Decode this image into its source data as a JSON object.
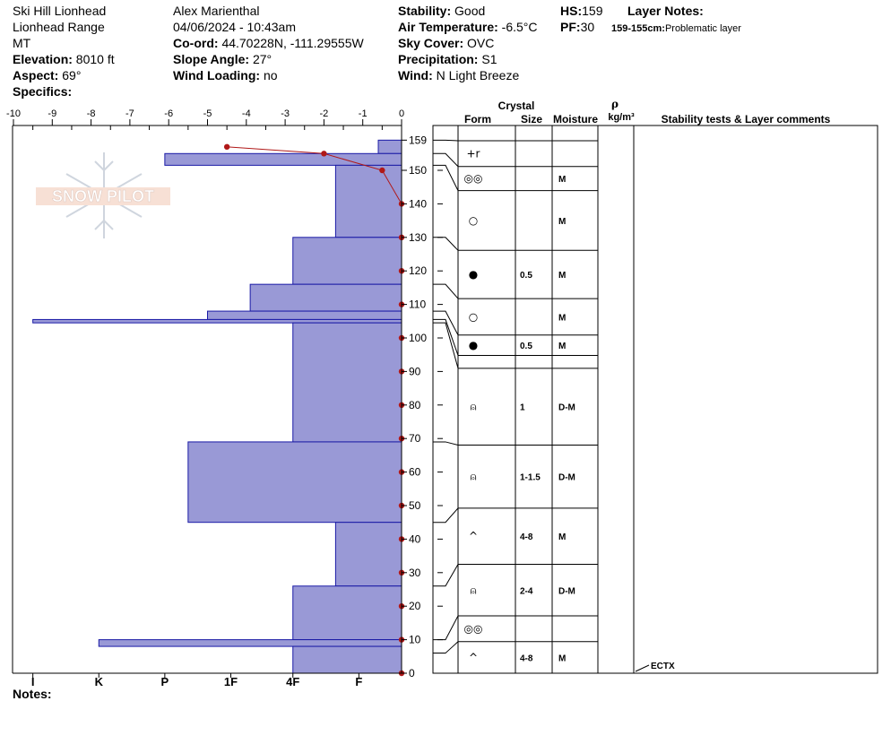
{
  "header": {
    "location": "Ski Hill Lionhead",
    "range": "Lionhead Range",
    "state": "MT",
    "elevation_label": "Elevation:",
    "elevation": "8010 ft",
    "aspect_label": "Aspect:",
    "aspect": "69°",
    "specifics_label": "Specifics:",
    "observer": "Alex Marienthal",
    "datetime": "04/06/2024 - 10:43am",
    "coord_label": "Co-ord:",
    "coord": "44.70228N, -111.29555W",
    "slope_label": "Slope Angle:",
    "slope": "27°",
    "wind_loading_label": "Wind Loading:",
    "wind_loading": "no",
    "stability_label": "Stability:",
    "stability": "Good",
    "air_temp_label": "Air Temperature:",
    "air_temp": "-6.5°C",
    "sky_label": "Sky Cover:",
    "sky": "OVC",
    "precip_label": "Precipitation:",
    "precip": "S1",
    "wind_label": "Wind:",
    "wind": "N Light Breeze",
    "hs_label": "HS:",
    "hs": "159",
    "pf_label": "PF:",
    "pf": "30",
    "layer_notes_label": "Layer Notes:",
    "layer_note_depth": "159-155cm:",
    "layer_note_text": "Problematic layer"
  },
  "notes_label": "Notes:",
  "watermark": "SNOW PILOT",
  "table_headers": {
    "crystal": "Crystal",
    "form": "Form",
    "size": "Size",
    "moisture": "Moisture",
    "rho": "ρ",
    "density_unit": "kg/m³",
    "stability": "Stability tests & Layer comments"
  },
  "colors": {
    "hardness_fill": "#9999d6",
    "hardness_edge": "#1a1aa6",
    "temp": "#b01818"
  },
  "chart_data": {
    "type": "snow-profile",
    "temp_axis": {
      "ticks": [
        -10,
        -9,
        -8,
        -7,
        -6,
        -5,
        -4,
        -3,
        -2,
        -1,
        0
      ],
      "range": [
        -10,
        0
      ]
    },
    "height_axis": {
      "ticks": [
        0,
        10,
        20,
        30,
        40,
        50,
        60,
        70,
        80,
        90,
        100,
        110,
        120,
        130,
        140,
        150,
        159
      ],
      "range": [
        0,
        159
      ]
    },
    "hardness_axis": {
      "labels": [
        "I",
        "K",
        "P",
        "1F",
        "4F",
        "F"
      ],
      "positions": [
        -9.5,
        -7.8,
        -6.1,
        -4.4,
        -2.8,
        -1.1
      ]
    },
    "hardness_layers": [
      {
        "top": 159,
        "bottom": 155,
        "value": -0.6
      },
      {
        "top": 155,
        "bottom": 151.5,
        "value": -6.1
      },
      {
        "top": 151.5,
        "bottom": 130,
        "value": -1.7
      },
      {
        "top": 130,
        "bottom": 116,
        "value": -2.8
      },
      {
        "top": 116,
        "bottom": 108,
        "value": -3.9
      },
      {
        "top": 108,
        "bottom": 105.5,
        "value": -5.0
      },
      {
        "top": 105.5,
        "bottom": 104.5,
        "value": -9.5
      },
      {
        "top": 104.5,
        "bottom": 69,
        "value": -2.8
      },
      {
        "top": 69,
        "bottom": 45,
        "value": -5.5
      },
      {
        "top": 45,
        "bottom": 26,
        "value": -1.7
      },
      {
        "top": 26,
        "bottom": 10,
        "value": -2.8
      },
      {
        "top": 10,
        "bottom": 8,
        "value": -7.8
      },
      {
        "top": 8,
        "bottom": 0,
        "value": -2.8
      }
    ],
    "temperature_profile": [
      {
        "temp": -4.5,
        "height": 157
      },
      {
        "temp": -2.0,
        "height": 155
      },
      {
        "temp": -0.5,
        "height": 150
      },
      {
        "temp": 0,
        "height": 140
      },
      {
        "temp": 0,
        "height": 130
      },
      {
        "temp": 0,
        "height": 120
      },
      {
        "temp": 0,
        "height": 110
      },
      {
        "temp": 0,
        "height": 100
      },
      {
        "temp": 0,
        "height": 90
      },
      {
        "temp": 0,
        "height": 80
      },
      {
        "temp": 0,
        "height": 70
      },
      {
        "temp": 0,
        "height": 60
      },
      {
        "temp": 0,
        "height": 50
      },
      {
        "temp": 0,
        "height": 40
      },
      {
        "temp": 0,
        "height": 30
      },
      {
        "temp": 0,
        "height": 20
      },
      {
        "temp": 0,
        "height": 10
      },
      {
        "temp": 0,
        "height": 0
      }
    ],
    "layers_table": [
      {
        "top": 159,
        "bottom": 155,
        "form": "+r",
        "size": "",
        "moisture": ""
      },
      {
        "top": 155,
        "bottom": 151.5,
        "form": "◎◎",
        "size": "",
        "moisture": "M"
      },
      {
        "top": 151.5,
        "bottom": 130,
        "form": "○",
        "size": "",
        "moisture": "M"
      },
      {
        "top": 130,
        "bottom": 116,
        "form": "●",
        "size": "0.5",
        "moisture": "M"
      },
      {
        "top": 116,
        "bottom": 108,
        "form": "○",
        "size": "",
        "moisture": "M"
      },
      {
        "top": 108,
        "bottom": 105.5,
        "form": "●",
        "size": "0.5",
        "moisture": "M"
      },
      {
        "top": 105.5,
        "bottom": 104.5,
        "form": "",
        "size": "",
        "moisture": ""
      },
      {
        "top": 104.5,
        "bottom": 69,
        "form": "⍝",
        "size": "1",
        "moisture": "D-M"
      },
      {
        "top": 69,
        "bottom": 45,
        "form": "⍝",
        "size": "1-1.5",
        "moisture": "D-M"
      },
      {
        "top": 45,
        "bottom": 26,
        "form": "^",
        "size": "4-8",
        "moisture": "M"
      },
      {
        "top": 26,
        "bottom": 10,
        "form": "⍝",
        "size": "2-4",
        "moisture": "D-M"
      },
      {
        "top": 10,
        "bottom": 6,
        "form": "◎◎",
        "size": "",
        "moisture": ""
      },
      {
        "top": 6,
        "bottom": 0,
        "form": "^",
        "size": "4-8",
        "moisture": "M"
      }
    ],
    "stability_tests": [
      {
        "height": 0,
        "label": "ECTX"
      }
    ]
  }
}
